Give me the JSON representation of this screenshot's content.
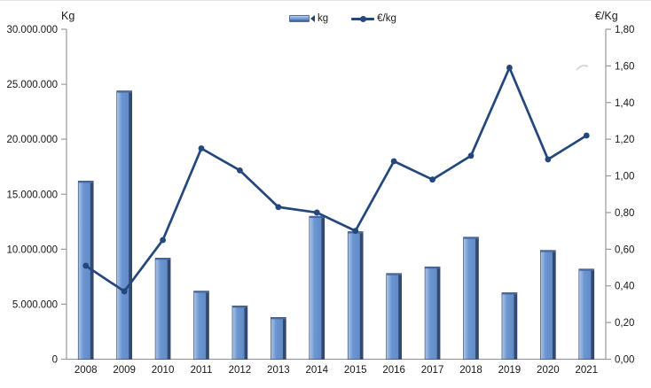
{
  "chart_data": {
    "type": "bar",
    "combo": "bar+line",
    "title": "",
    "categories": [
      "2008",
      "2009",
      "2010",
      "2011",
      "2012",
      "2013",
      "2014",
      "2015",
      "2016",
      "2017",
      "2018",
      "2019",
      "2020",
      "2021"
    ],
    "series": [
      {
        "name": "kg",
        "type": "bar",
        "axis": "left",
        "values": [
          16200000,
          24400000,
          9200000,
          6200000,
          4850000,
          3800000,
          13000000,
          11600000,
          7800000,
          8400000,
          11100000,
          6050000,
          9900000,
          8200000
        ]
      },
      {
        "name": "€/kg",
        "type": "line",
        "axis": "right",
        "values": [
          0.51,
          0.37,
          0.65,
          1.15,
          1.03,
          0.83,
          0.8,
          0.7,
          1.08,
          0.98,
          1.11,
          1.59,
          1.09,
          1.22
        ]
      }
    ],
    "left_axis": {
      "label": "Kg",
      "min": 0,
      "max": 30000000,
      "step": 5000000,
      "tick_labels": [
        "0",
        "5.000.000",
        "10.000.000",
        "15.000.000",
        "20.000.000",
        "25.000.000",
        "30.000.000"
      ]
    },
    "right_axis": {
      "label": "€/Kg",
      "min": 0,
      "max": 1.8,
      "step": 0.2,
      "tick_labels": [
        "0,00",
        "0,20",
        "0,40",
        "0,60",
        "0,80",
        "1,00",
        "1,20",
        "1,40",
        "1,60",
        "1,80"
      ]
    },
    "legend_position": "top-center",
    "grid": false,
    "colors": {
      "bar_light": "#aec6e8",
      "bar_fill": "#6b95d0",
      "bar_shade": "#5e88c4",
      "bar_edge": "#2d4265",
      "bar_cap": "#4b699c",
      "line": "#24477c",
      "axis": "#9a9a9a",
      "text": "#161616",
      "smudge": "#cbced3"
    }
  }
}
